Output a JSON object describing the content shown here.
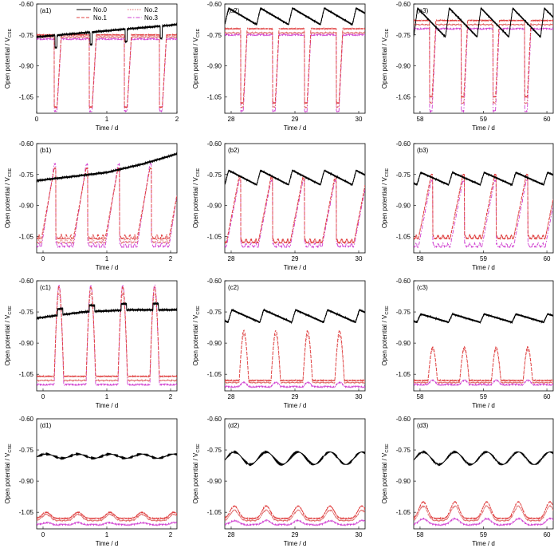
{
  "figure": {
    "y_axis_label": "Open potential / V",
    "y_axis_subscript": "CSE",
    "x_axis_label": "Time / d"
  },
  "legend": [
    {
      "name": "No.0",
      "color": "#000000",
      "dash": ""
    },
    {
      "name": "No.1",
      "color": "#e04040",
      "dash": "4,2"
    },
    {
      "name": "No.2",
      "color": "#e06a6a",
      "dash": "1.5,1.5"
    },
    {
      "name": "No.3",
      "color": "#d040d0",
      "dash": "5,2,1.5,2"
    }
  ],
  "y_ticks": [
    "-0.60",
    "-0.75",
    "-0.90",
    "-1.05"
  ],
  "x_ticks": [
    [
      "0",
      "1",
      "2"
    ],
    [
      "28",
      "29",
      "30"
    ],
    [
      "58",
      "59",
      "60"
    ]
  ],
  "chart_data": [
    {
      "type": "line",
      "label": "(a1)",
      "xlim": [
        0,
        2
      ],
      "ylim": [
        -1.13,
        -0.6
      ],
      "x_ticks": [
        0,
        1,
        2
      ],
      "y_ticks": [
        -0.6,
        -0.75,
        -0.9,
        -1.05
      ],
      "pattern": "a",
      "phase": 0,
      "series": [
        {
          "name": "No.0",
          "shape": "rising",
          "y_values": [
            -0.76,
            -0.74,
            -0.72,
            -0.7
          ]
        },
        {
          "name": "No.1",
          "y_high": -0.75,
          "y_low": -1.1
        },
        {
          "name": "No.2",
          "y_high": -0.76,
          "y_low": -1.1
        },
        {
          "name": "No.3",
          "y_high": -0.77,
          "y_low": -1.12
        }
      ]
    },
    {
      "type": "line",
      "label": "(a2)",
      "xlim": [
        27.9,
        30.1
      ],
      "ylim": [
        -1.13,
        -0.6
      ],
      "x_ticks": [
        28,
        29,
        30
      ],
      "y_ticks": [
        -0.6,
        -0.75,
        -0.9,
        -1.05
      ],
      "pattern": "a",
      "phase": 0.2,
      "series": [
        {
          "name": "No.0",
          "shape": "sawtooth",
          "y_high": -0.62,
          "y_low": -0.7
        },
        {
          "name": "No.1",
          "y_high": -0.72,
          "y_low": -1.08
        },
        {
          "name": "No.2",
          "y_high": -0.74,
          "y_low": -1.1
        },
        {
          "name": "No.3",
          "y_high": -0.75,
          "y_low": -1.12
        }
      ]
    },
    {
      "type": "line",
      "label": "(a3)",
      "xlim": [
        57.9,
        60.1
      ],
      "ylim": [
        -1.13,
        -0.6
      ],
      "x_ticks": [
        58,
        59,
        60
      ],
      "y_ticks": [
        -0.6,
        -0.75,
        -0.9,
        -1.05
      ],
      "pattern": "a",
      "phase": 0.2,
      "series": [
        {
          "name": "No.0",
          "shape": "sawtooth",
          "y_high": -0.62,
          "y_low": -0.76
        },
        {
          "name": "No.1",
          "y_high": -0.68,
          "y_low": -1.05
        },
        {
          "name": "No.2",
          "y_high": -0.7,
          "y_low": -1.08
        },
        {
          "name": "No.3",
          "y_high": -0.72,
          "y_low": -1.12
        }
      ]
    },
    {
      "type": "line",
      "label": "(b1)",
      "xlim": [
        -0.1,
        2.1
      ],
      "ylim": [
        -1.13,
        -0.6
      ],
      "x_ticks": [
        0,
        1,
        2
      ],
      "y_ticks": [
        -0.6,
        -0.75,
        -0.9,
        -1.05
      ],
      "pattern": "b",
      "phase": 0.1,
      "series": [
        {
          "name": "No.0",
          "shape": "stepped",
          "y_values": [
            -0.78,
            -0.76,
            -0.74,
            -0.7,
            -0.65
          ]
        },
        {
          "name": "No.1",
          "y_high": -0.72,
          "y_low": -1.06
        },
        {
          "name": "No.2",
          "y_high": -0.72,
          "y_low": -1.08
        },
        {
          "name": "No.3",
          "y_high": -0.7,
          "y_low": -1.1
        }
      ]
    },
    {
      "type": "line",
      "label": "(b2)",
      "xlim": [
        27.9,
        30.1
      ],
      "ylim": [
        -1.13,
        -0.6
      ],
      "x_ticks": [
        28,
        29,
        30
      ],
      "y_ticks": [
        -0.6,
        -0.75,
        -0.9,
        -1.05
      ],
      "pattern": "b",
      "phase": 0.2,
      "series": [
        {
          "name": "No.0",
          "shape": "sawtooth",
          "y_high": -0.73,
          "y_low": -0.8
        },
        {
          "name": "No.1",
          "y_high": -0.76,
          "y_low": -1.08
        },
        {
          "name": "No.2",
          "y_high": -0.77,
          "y_low": -1.08
        },
        {
          "name": "No.3",
          "y_high": -0.78,
          "y_low": -1.1
        }
      ]
    },
    {
      "type": "line",
      "label": "(b3)",
      "xlim": [
        57.9,
        60.1
      ],
      "ylim": [
        -1.13,
        -0.6
      ],
      "x_ticks": [
        58,
        59,
        60
      ],
      "y_ticks": [
        -0.6,
        -0.75,
        -0.9,
        -1.05
      ],
      "pattern": "b",
      "phase": 0.1,
      "series": [
        {
          "name": "No.0",
          "shape": "sawtooth",
          "y_high": -0.74,
          "y_low": -0.8
        },
        {
          "name": "No.1",
          "y_high": -0.75,
          "y_low": -1.06
        },
        {
          "name": "No.2",
          "y_high": -0.76,
          "y_low": -1.06
        },
        {
          "name": "No.3",
          "y_high": -0.78,
          "y_low": -1.1
        }
      ]
    },
    {
      "type": "line",
      "label": "(c1)",
      "xlim": [
        -0.1,
        2.1
      ],
      "ylim": [
        -1.13,
        -0.6
      ],
      "x_ticks": [
        0,
        1,
        2
      ],
      "y_ticks": [
        -0.6,
        -0.75,
        -0.9,
        -1.05
      ],
      "pattern": "c",
      "phase": 0,
      "series": [
        {
          "name": "No.0",
          "shape": "stepped",
          "y_values": [
            -0.78,
            -0.75,
            -0.74,
            -0.74
          ]
        },
        {
          "name": "No.1",
          "y_high": -0.63,
          "y_low": -1.06
        },
        {
          "name": "No.2",
          "y_high": -0.66,
          "y_low": -1.08
        },
        {
          "name": "No.3",
          "y_high": -0.62,
          "y_low": -1.1
        }
      ]
    },
    {
      "type": "line",
      "label": "(c2)",
      "xlim": [
        27.9,
        30.1
      ],
      "ylim": [
        -1.13,
        -0.6
      ],
      "x_ticks": [
        28,
        29,
        30
      ],
      "y_ticks": [
        -0.6,
        -0.75,
        -0.9,
        -1.05
      ],
      "pattern": "c",
      "phase": 0.1,
      "series": [
        {
          "name": "No.0",
          "shape": "sawtooth",
          "y_high": -0.74,
          "y_low": -0.8
        },
        {
          "name": "No.1",
          "y_high": -0.84,
          "y_low": -1.08
        },
        {
          "name": "No.2",
          "y_high": -0.86,
          "y_low": -1.09
        },
        {
          "name": "No.3",
          "y_high": -1.09,
          "y_low": -1.11
        }
      ]
    },
    {
      "type": "line",
      "label": "(c3)",
      "xlim": [
        57.9,
        60.1
      ],
      "ylim": [
        -1.13,
        -0.6
      ],
      "x_ticks": [
        58,
        59,
        60
      ],
      "y_ticks": [
        -0.6,
        -0.75,
        -0.9,
        -1.05
      ],
      "pattern": "c",
      "phase": 0.1,
      "series": [
        {
          "name": "No.0",
          "shape": "sawtooth",
          "y_high": -0.76,
          "y_low": -0.8
        },
        {
          "name": "No.1",
          "y_high": -0.92,
          "y_low": -1.08
        },
        {
          "name": "No.2",
          "y_high": -0.93,
          "y_low": -1.09
        },
        {
          "name": "No.3",
          "y_high": -1.08,
          "y_low": -1.1
        }
      ]
    },
    {
      "type": "line",
      "label": "(d1)",
      "xlim": [
        -0.1,
        2.1
      ],
      "ylim": [
        -1.13,
        -0.6
      ],
      "x_ticks": [
        0,
        1,
        2
      ],
      "y_ticks": [
        -0.6,
        -0.75,
        -0.9,
        -1.05
      ],
      "pattern": "d",
      "phase": 0.3,
      "series": [
        {
          "name": "No.0",
          "shape": "wavy",
          "y_high": -0.77,
          "y_low": -0.79
        },
        {
          "name": "No.1",
          "y_high": -1.05,
          "y_low": -1.08
        },
        {
          "name": "No.2",
          "y_high": -1.06,
          "y_low": -1.09
        },
        {
          "name": "No.3",
          "y_high": -1.1,
          "y_low": -1.11
        }
      ]
    },
    {
      "type": "line",
      "label": "(d2)",
      "xlim": [
        27.9,
        30.1
      ],
      "ylim": [
        -1.13,
        -0.6
      ],
      "x_ticks": [
        28,
        29,
        30
      ],
      "y_ticks": [
        -0.6,
        -0.75,
        -0.9,
        -1.05
      ],
      "pattern": "d",
      "phase": 0.3,
      "series": [
        {
          "name": "No.0",
          "shape": "wavy",
          "y_high": -0.76,
          "y_low": -0.82
        },
        {
          "name": "No.1",
          "y_high": -1.02,
          "y_low": -1.08
        },
        {
          "name": "No.2",
          "y_high": -1.04,
          "y_low": -1.09
        },
        {
          "name": "No.3",
          "y_high": -1.09,
          "y_low": -1.11
        }
      ]
    },
    {
      "type": "line",
      "label": "(d3)",
      "xlim": [
        57.9,
        60.1
      ],
      "ylim": [
        -1.13,
        -0.6
      ],
      "x_ticks": [
        58,
        59,
        60
      ],
      "y_ticks": [
        -0.6,
        -0.75,
        -0.9,
        -1.05
      ],
      "pattern": "d",
      "phase": 0.3,
      "series": [
        {
          "name": "No.0",
          "shape": "wavy",
          "y_high": -0.76,
          "y_low": -0.82
        },
        {
          "name": "No.1",
          "y_high": -1.0,
          "y_low": -1.08
        },
        {
          "name": "No.2",
          "y_high": -1.02,
          "y_low": -1.09
        },
        {
          "name": "No.3",
          "y_high": -1.08,
          "y_low": -1.11
        }
      ]
    }
  ]
}
